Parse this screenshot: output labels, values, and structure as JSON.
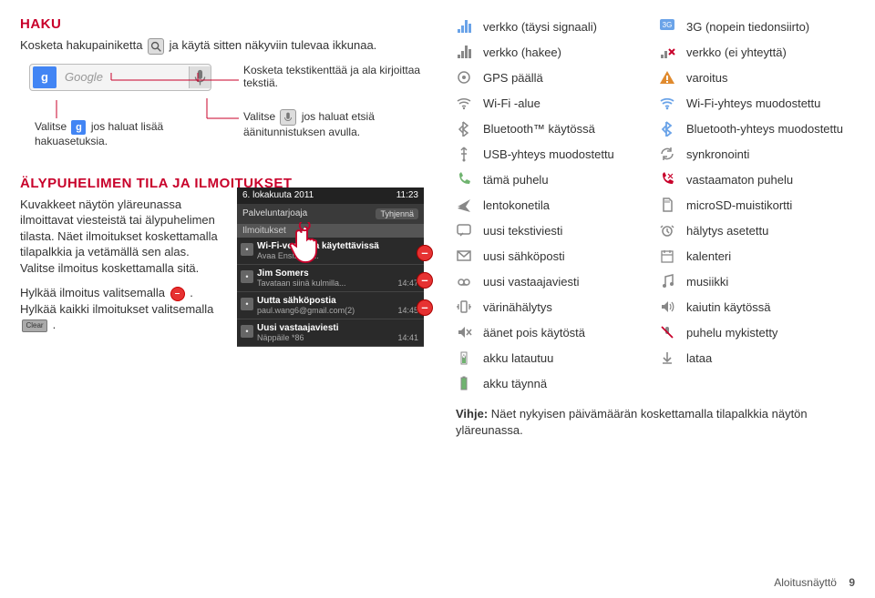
{
  "left": {
    "haku_title": "HAKU",
    "haku_text1a": "Kosketa hakupainiketta ",
    "haku_text1b": " ja käytä sitten näkyviin tulevaa ikkunaa.",
    "google_label": "Google",
    "search_tip_left_a": "Valitse ",
    "search_tip_left_b": " jos haluat lisää hakuasetuksia.",
    "search_tip_right_top": "Kosketa tekstikenttää ja ala kirjoittaa tekstiä.",
    "search_tip_right_bot_a": "Valitse ",
    "search_tip_right_bot_b": " jos haluat etsiä äänitunnistuksen avulla.",
    "tila_title": "ÄLYPUHELIMEN TILA JA ILMOITUKSET",
    "tila_p1": "Kuvakkeet näytön yläreunassa ilmoittavat viesteistä tai älypuhelimen tilasta. Näet ilmoitukset koskettamalla tilapalkkia ja vetämällä sen alas. Valitse ilmoitus koskettamalla sitä.",
    "tila_p2a": "Hylkää ilmoitus valitsemalla ",
    "tila_p2b": ". Hylkää kaikki ilmoitukset valitsemalla ",
    "tila_p2c": ".",
    "clear_label": "Clear",
    "notif": {
      "date": "6. lokakuuta 2011",
      "time": "11:23",
      "service": "Palveluntarjoaja",
      "tyhjenna": "Tyhjennä",
      "section": "Ilmoitukset",
      "items": [
        {
          "title": "Wi-Fi-verkkoja käytettävissä",
          "sub": "Avaa Ensisijais...",
          "time": ""
        },
        {
          "title": "Jim Somers",
          "sub": "Tavataan siinä kulmilla...",
          "time": "14:47"
        },
        {
          "title": "Uutta sähköpostia",
          "sub": "paul.wang6@gmail.com(2)",
          "time": "14:45"
        },
        {
          "title": "Uusi vastaajaviesti",
          "sub": "Näppäile *86",
          "time": "14:41"
        }
      ]
    }
  },
  "right": {
    "rows": [
      {
        "l": "verkko (täysi signaali)",
        "r": "3G (nopein tiedonsiirto)",
        "li": "signal",
        "ri": "3g"
      },
      {
        "l": "verkko (hakee)",
        "r": "verkko (ei yhteyttä)",
        "li": "signal-dim",
        "ri": "signal-x"
      },
      {
        "l": "GPS päällä",
        "r": "varoitus",
        "li": "gps",
        "ri": "warn"
      },
      {
        "l": "Wi-Fi -alue",
        "r": "Wi-Fi-yhteys muodostettu",
        "li": "wifi",
        "ri": "wifi-on"
      },
      {
        "l": "Bluetooth™ käytössä",
        "r": "Bluetooth-yhteys muodostettu",
        "li": "bt",
        "ri": "bt-on"
      },
      {
        "l": "USB-yhteys muodostettu",
        "r": "synkronointi",
        "li": "usb",
        "ri": "sync"
      },
      {
        "l": "tämä puhelu",
        "r": "vastaamaton puhelu",
        "li": "call",
        "ri": "missed"
      },
      {
        "l": "lentokonetila",
        "r": "microSD-muistikortti",
        "li": "plane",
        "ri": "sd"
      },
      {
        "l": "uusi tekstiviesti",
        "r": "hälytys asetettu",
        "li": "sms",
        "ri": "alarm"
      },
      {
        "l": "uusi sähköposti",
        "r": "kalenteri",
        "li": "mail",
        "ri": "cal"
      },
      {
        "l": "uusi vastaajaviesti",
        "r": "musiikki",
        "li": "vm",
        "ri": "music"
      },
      {
        "l": "värinähälytys",
        "r": "kaiutin käytössä",
        "li": "vib",
        "ri": "spk"
      },
      {
        "l": "äänet pois käytöstä",
        "r": "puhelu mykistetty",
        "li": "mute",
        "ri": "micoff"
      },
      {
        "l": "akku latautuu",
        "r": "lataa",
        "li": "batchg",
        "ri": "dl"
      },
      {
        "l": "akku täynnä",
        "r": "",
        "li": "batfull",
        "ri": ""
      }
    ],
    "hint_b": "Vihje:",
    "hint": " Näet nykyisen päivämäärän koskettamalla tilapalkkia näytön yläreunassa."
  },
  "footer": {
    "label": "Aloitusnäyttö",
    "page": "9"
  },
  "colors": {
    "red": "#c8002a",
    "grey": "#888",
    "blue": "#4285f4"
  }
}
